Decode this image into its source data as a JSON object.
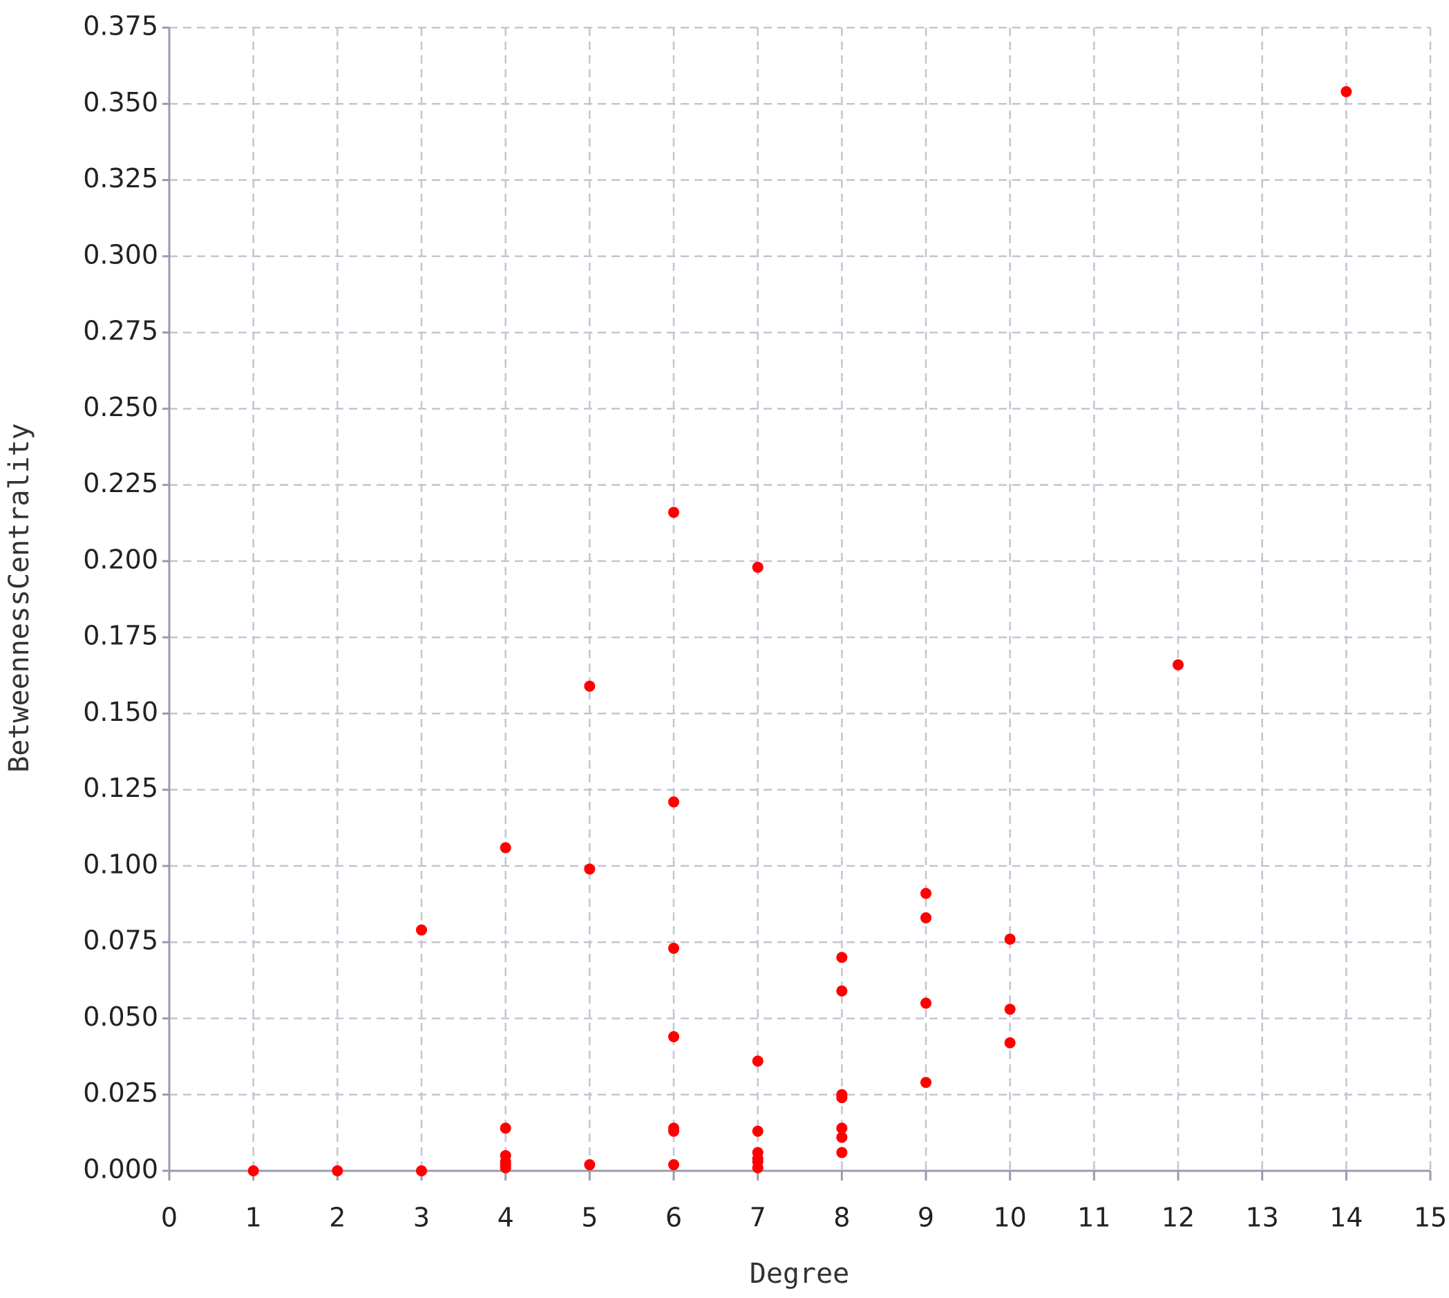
{
  "chart_data": {
    "type": "scatter",
    "x_label": "Degree",
    "y_label": "BetweennessCentrality",
    "xlim": [
      0,
      15
    ],
    "ylim": [
      0,
      0.375
    ],
    "xticks": [
      0,
      1,
      2,
      3,
      4,
      5,
      6,
      7,
      8,
      9,
      10,
      11,
      12,
      13,
      14,
      15
    ],
    "yticks": [
      {
        "value": 0,
        "label": "0.000"
      },
      0.025,
      {
        "value": 0.05,
        "label": "0.050"
      },
      0.075,
      {
        "value": 0.1,
        "label": "0.100"
      },
      0.125,
      {
        "value": 0.15,
        "label": "0.150"
      },
      0.175,
      {
        "value": 0.2,
        "label": "0.200"
      },
      0.225,
      {
        "value": 0.25,
        "label": "0.250"
      },
      0.275,
      {
        "value": 0.3,
        "label": "0.300"
      },
      0.325,
      {
        "value": 0.35,
        "label": "0.350"
      },
      0.375
    ],
    "grid": true,
    "color": "#ff0000",
    "x": [
      1,
      2,
      3,
      3,
      4,
      4,
      4,
      4,
      4,
      4,
      5,
      5,
      5,
      6,
      6,
      6,
      6,
      6,
      6,
      6,
      7,
      7,
      7,
      7,
      7,
      7,
      7,
      8,
      8,
      8,
      8,
      8,
      8,
      8,
      9,
      9,
      9,
      9,
      10,
      10,
      10,
      12,
      14
    ],
    "y": [
      0,
      0,
      0,
      0.079,
      0.106,
      0.014,
      0.005,
      0.003,
      0.002,
      0.001,
      0.159,
      0.099,
      0.002,
      0.216,
      0.121,
      0.073,
      0.044,
      0.014,
      0.013,
      0.002,
      0.198,
      0.036,
      0.013,
      0.006,
      0.004,
      0.003,
      0.001,
      0.07,
      0.059,
      0.025,
      0.024,
      0.014,
      0.011,
      0.006,
      0.091,
      0.083,
      0.055,
      0.029,
      0.076,
      0.053,
      0.042,
      0.166,
      0.354
    ]
  }
}
